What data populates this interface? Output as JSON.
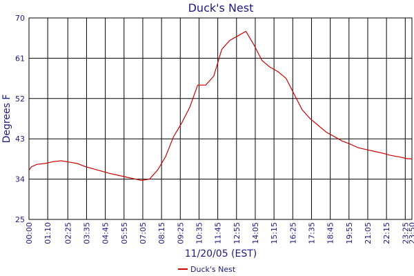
{
  "chart_data": {
    "type": "line",
    "title": "Duck's Nest",
    "x_label": "11/20/05 (EST)",
    "y_label": "Degrees F",
    "x": [
      0,
      10,
      30,
      60,
      90,
      120,
      150,
      180,
      210,
      240,
      270,
      300,
      330,
      360,
      390,
      420,
      450,
      480,
      510,
      540,
      570,
      600,
      630,
      660,
      690,
      720,
      750,
      780,
      810,
      840,
      870,
      900,
      930,
      960,
      990,
      1020,
      1050,
      1080,
      1110,
      1140,
      1170,
      1200,
      1230,
      1260,
      1290,
      1320,
      1350,
      1380,
      1410,
      1430
    ],
    "series": [
      {
        "name": "Duck's Nest",
        "color": "#cc0000",
        "values": [
          36,
          36.8,
          37.3,
          37.5,
          37.9,
          38.1,
          37.8,
          37.5,
          36.8,
          36.3,
          35.8,
          35.3,
          34.9,
          34.5,
          34.1,
          33.7,
          34,
          36,
          39,
          43.5,
          46.5,
          50,
          55,
          55,
          57,
          63,
          65,
          66,
          67,
          64,
          60.5,
          59,
          58,
          56.5,
          53,
          49.5,
          47.5,
          46,
          44.5,
          43.5,
          42.5,
          41.8,
          41,
          40.6,
          40.2,
          39.8,
          39.3,
          39,
          38.6,
          38.5
        ]
      }
    ],
    "xlim": [
      0,
      1430
    ],
    "xticks": [
      {
        "value": 0,
        "label": "00:00"
      },
      {
        "value": 70,
        "label": "01:10"
      },
      {
        "value": 145,
        "label": "02:25"
      },
      {
        "value": 215,
        "label": "03:35"
      },
      {
        "value": 285,
        "label": "04:45"
      },
      {
        "value": 355,
        "label": "05:55"
      },
      {
        "value": 425,
        "label": "07:05"
      },
      {
        "value": 495,
        "label": "08:15"
      },
      {
        "value": 565,
        "label": "09:25"
      },
      {
        "value": 635,
        "label": "10:35"
      },
      {
        "value": 705,
        "label": "11:45"
      },
      {
        "value": 775,
        "label": "12:55"
      },
      {
        "value": 845,
        "label": "14:05"
      },
      {
        "value": 915,
        "label": "15:15"
      },
      {
        "value": 985,
        "label": "16:25"
      },
      {
        "value": 1055,
        "label": "17:35"
      },
      {
        "value": 1125,
        "label": "18:45"
      },
      {
        "value": 1195,
        "label": "19:55"
      },
      {
        "value": 1265,
        "label": "21:05"
      },
      {
        "value": 1335,
        "label": "22:15"
      },
      {
        "value": 1405,
        "label": "23:25"
      },
      {
        "value": 1430,
        "label": "23:50"
      }
    ],
    "ylim": [
      25,
      70
    ],
    "yticks": [
      25,
      34,
      43,
      52,
      61,
      70
    ],
    "grid": true
  }
}
